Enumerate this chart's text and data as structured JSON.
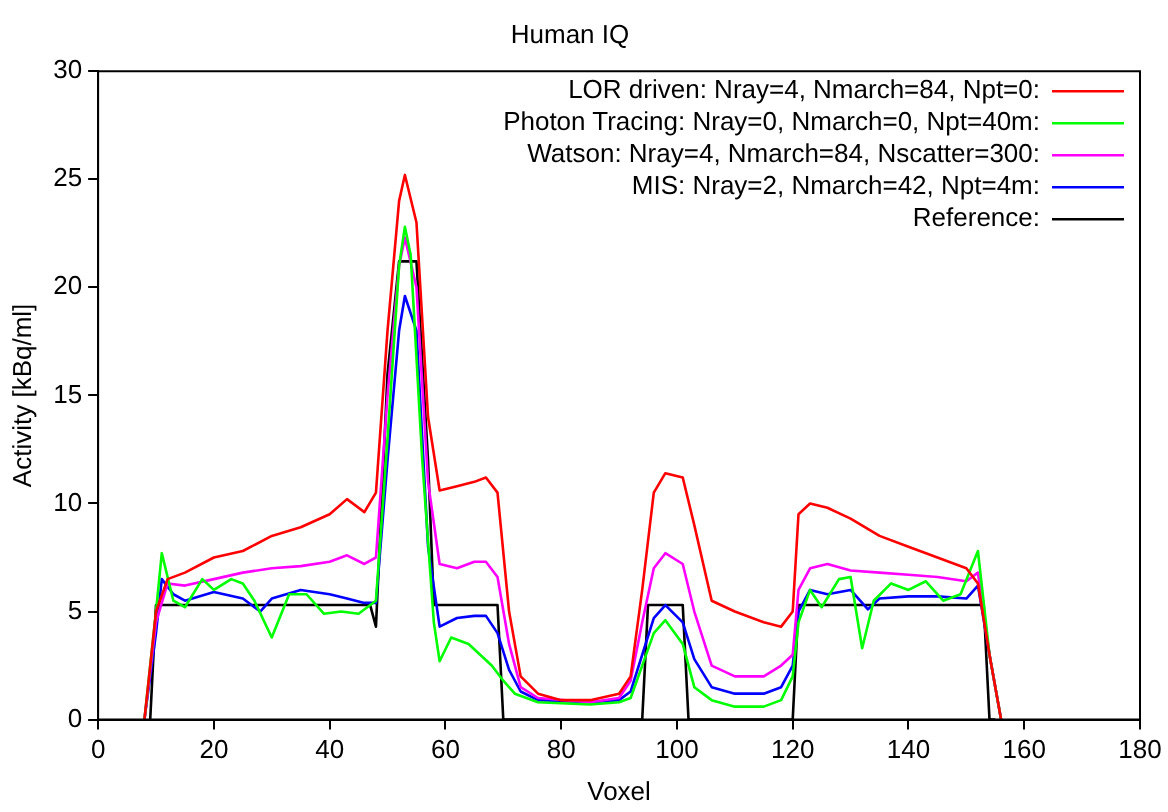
{
  "chart_data": {
    "type": "line",
    "title": "Human IQ",
    "xlabel": "Voxel",
    "ylabel": "Activity [kBq/ml]",
    "xlim": [
      0,
      180
    ],
    "xticks": [
      0,
      20,
      40,
      60,
      80,
      100,
      120,
      140,
      160,
      180
    ],
    "ylim": [
      0,
      30
    ],
    "yticks": [
      0,
      5,
      10,
      15,
      20,
      25,
      30
    ],
    "grid": false,
    "legend": "top right",
    "marker": "none",
    "line_style": "solid",
    "series": [
      {
        "name": "LOR driven: Nray=4, Nmarch=84, Npt=0:",
        "color": "#ff0000",
        "x": [
          8,
          10,
          12,
          15,
          20,
          25,
          30,
          35,
          40,
          43,
          46,
          48,
          50,
          52,
          53,
          55,
          57,
          59,
          62,
          65,
          67,
          69,
          71,
          73,
          76,
          80,
          85,
          90,
          92,
          94,
          96,
          98,
          101,
          103,
          106,
          110,
          115,
          118,
          120,
          121,
          123,
          126,
          130,
          135,
          140,
          145,
          150,
          152,
          154,
          156
        ],
        "values": [
          0,
          5,
          6.5,
          6.8,
          7.5,
          7.8,
          8.5,
          8.9,
          9.5,
          10.2,
          9.6,
          10.5,
          18,
          24,
          25.2,
          23,
          14,
          10.6,
          10.8,
          11,
          11.2,
          10.5,
          5,
          2,
          1.2,
          0.9,
          0.9,
          1.2,
          2,
          6,
          10.5,
          11.4,
          11.2,
          9,
          5.5,
          5,
          4.5,
          4.3,
          5,
          9.5,
          10,
          9.8,
          9.3,
          8.5,
          8,
          7.5,
          7,
          6.3,
          3,
          0
        ]
      },
      {
        "name": "Photon Tracing: Nray=0, Nmarch=0, Npt=40m:",
        "color": "#00ff00",
        "x": [
          8,
          10,
          11,
          13,
          15,
          18,
          20,
          23,
          25,
          27,
          30,
          33,
          36,
          39,
          42,
          45,
          48,
          50,
          52,
          53,
          54,
          56,
          58,
          59,
          61,
          64,
          66,
          68,
          70,
          72,
          76,
          85,
          90,
          92,
          94,
          96,
          98,
          101,
          103,
          106,
          110,
          115,
          118,
          120,
          121,
          123,
          125,
          128,
          130,
          132,
          134,
          137,
          140,
          143,
          146,
          149,
          152,
          154,
          156
        ],
        "values": [
          0,
          5,
          7.7,
          5.5,
          5.2,
          6.5,
          6,
          6.5,
          6.3,
          5.5,
          3.8,
          5.8,
          5.8,
          4.9,
          5,
          4.9,
          5.5,
          13,
          21,
          22.8,
          21.5,
          12,
          4.5,
          2.7,
          3.8,
          3.5,
          3,
          2.5,
          1.8,
          1.2,
          0.8,
          0.7,
          0.8,
          1,
          2.5,
          4,
          4.6,
          3.5,
          1.5,
          0.9,
          0.6,
          0.6,
          0.9,
          2,
          4.5,
          6,
          5.2,
          6.5,
          6.6,
          3.3,
          5.5,
          6.3,
          6,
          6.4,
          5.5,
          5.8,
          7.8,
          3,
          0
        ]
      },
      {
        "name": "Watson: Nray=4, Nmarch=84, Nscatter=300:",
        "color": "#ff00ff",
        "x": [
          8,
          10,
          12,
          15,
          20,
          25,
          30,
          35,
          40,
          43,
          46,
          48,
          50,
          52,
          53,
          55,
          57,
          59,
          62,
          65,
          67,
          69,
          71,
          73,
          76,
          85,
          90,
          92,
          94,
          96,
          98,
          101,
          103,
          106,
          110,
          115,
          118,
          120,
          121,
          123,
          126,
          130,
          135,
          140,
          145,
          150,
          152,
          154,
          156
        ],
        "values": [
          0,
          4.5,
          6.3,
          6.2,
          6.5,
          6.8,
          7,
          7.1,
          7.3,
          7.6,
          7.2,
          7.5,
          15,
          21,
          22.3,
          20,
          11,
          7.2,
          7,
          7.3,
          7.3,
          6.6,
          3.5,
          1.5,
          1,
          0.8,
          1,
          1.8,
          4.5,
          7,
          7.7,
          7.2,
          5,
          2.5,
          2,
          2,
          2.5,
          3,
          6,
          7,
          7.2,
          6.9,
          6.8,
          6.7,
          6.6,
          6.4,
          6.8,
          3,
          0
        ]
      },
      {
        "name": "MIS: Nray=2, Nmarch=42, Npt=4m:",
        "color": "#0000ff",
        "x": [
          8,
          10,
          11,
          13,
          15,
          20,
          25,
          28,
          30,
          35,
          40,
          43,
          46,
          48,
          50,
          52,
          53,
          55,
          57,
          59,
          62,
          65,
          67,
          69,
          71,
          73,
          76,
          85,
          90,
          92,
          94,
          96,
          98,
          101,
          103,
          106,
          110,
          115,
          118,
          120,
          121,
          123,
          126,
          130,
          133,
          135,
          140,
          145,
          150,
          152,
          154,
          156
        ],
        "values": [
          0,
          4,
          6.5,
          5.8,
          5.5,
          5.9,
          5.6,
          5,
          5.6,
          6,
          5.8,
          5.6,
          5.4,
          5.4,
          12,
          18,
          19.6,
          18,
          8,
          4.3,
          4.7,
          4.8,
          4.8,
          4,
          2.3,
          1.3,
          0.9,
          0.8,
          0.9,
          1.3,
          3,
          4.7,
          5.3,
          4.5,
          2.8,
          1.5,
          1.2,
          1.2,
          1.5,
          2.5,
          5,
          6,
          5.8,
          6,
          5.1,
          5.6,
          5.7,
          5.7,
          5.6,
          6.2,
          3,
          0
        ]
      },
      {
        "name": "Reference:",
        "color": "#000000",
        "x": [
          9,
          10,
          47,
          48,
          50,
          52,
          55,
          57,
          58,
          69,
          70,
          93,
          94,
          95,
          101,
          102,
          103,
          119,
          120,
          121,
          153,
          154,
          155
        ],
        "values": [
          0,
          5.3,
          5.3,
          4.3,
          16,
          21.2,
          21.2,
          12,
          5.3,
          5.3,
          0,
          0,
          0,
          5.3,
          5.3,
          0,
          0,
          0,
          0,
          5.3,
          5.3,
          0,
          0
        ]
      }
    ]
  }
}
